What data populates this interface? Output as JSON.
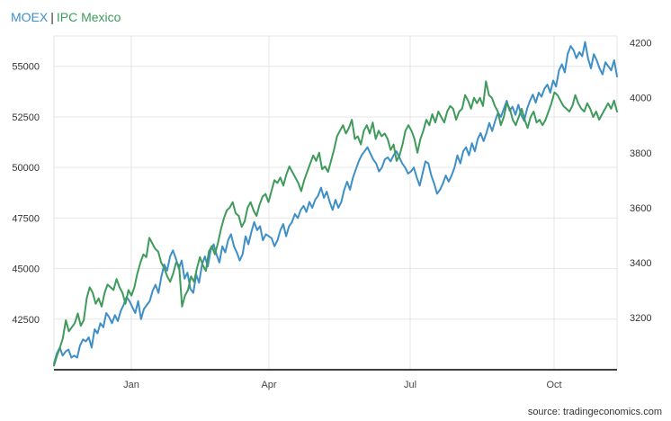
{
  "title": {
    "series1": "MOEX",
    "separator": "|",
    "series2": "IPC Mexico"
  },
  "source": "source: tradingeconomics.com",
  "colors": {
    "series1": "#3f8fc7",
    "series2": "#3f9a5c",
    "grid": "#e6e6e6",
    "axis": "#000000"
  },
  "chart_data": {
    "type": "line",
    "grid": true,
    "title": "",
    "xlabel": "",
    "x_ticks": [
      "Jan",
      "Apr",
      "Jul",
      "Oct"
    ],
    "y_left": {
      "ticks": [
        42500,
        45000,
        47500,
        50000,
        52500,
        55000
      ],
      "range": [
        40000,
        56500
      ]
    },
    "y_right": {
      "ticks": [
        3200,
        3400,
        3600,
        3800,
        4000,
        4200
      ],
      "range": [
        3010,
        4225
      ]
    },
    "series": [
      {
        "name": "MOEX",
        "axis": "left",
        "values": [
          40300,
          40800,
          41100,
          40700,
          40900,
          41000,
          40600,
          40700,
          40600,
          41200,
          41500,
          41400,
          41600,
          41100,
          42000,
          41800,
          42300,
          42100,
          42800,
          42600,
          42300,
          42700,
          42400,
          42900,
          43200,
          43600,
          43400,
          43100,
          42800,
          43400,
          42500,
          43000,
          43200,
          43400,
          43900,
          44200,
          43800,
          44600,
          45200,
          44900,
          45600,
          45900,
          45500,
          45000,
          45400,
          44500,
          44800,
          44000,
          43800,
          44700,
          44300,
          45200,
          45600,
          45100,
          45900,
          46200,
          45700,
          45300,
          46100,
          45800,
          46400,
          46700,
          46100,
          45800,
          45400,
          45700,
          46600,
          46200,
          46800,
          47300,
          46900,
          47100,
          46400,
          46700,
          46600,
          46500,
          46100,
          46400,
          46900,
          47200,
          46600,
          47100,
          47300,
          47700,
          47500,
          47900,
          48100,
          47800,
          48300,
          48000,
          48400,
          48600,
          49000,
          48500,
          48800,
          48300,
          47900,
          48400,
          48000,
          48300,
          48900,
          49300,
          48900,
          49500,
          49900,
          50300,
          50600,
          50800,
          51000,
          50700,
          50400,
          50200,
          49800,
          50000,
          50400,
          50500,
          50300,
          50600,
          50800,
          50500,
          50200,
          50000,
          49700,
          49800,
          50000,
          49500,
          49100,
          49700,
          50300,
          50200,
          49600,
          49200,
          48700,
          48900,
          49200,
          49600,
          49300,
          49600,
          50000,
          50600,
          50200,
          50800,
          51000,
          50600,
          51200,
          50800,
          51400,
          51700,
          51300,
          51700,
          52200,
          51800,
          52300,
          52700,
          52500,
          52900,
          53300,
          52800,
          53000,
          52600,
          53100,
          52600,
          52300,
          52900,
          53300,
          53600,
          53200,
          53700,
          53500,
          53900,
          54100,
          53700,
          54300,
          54000,
          54800,
          55100,
          54700,
          55600,
          56000,
          55800,
          55400,
          55700,
          55500,
          56200,
          55400,
          54900,
          55600,
          55300,
          54900,
          54600,
          55200,
          55000,
          54800,
          55300,
          54500
        ]
      },
      {
        "name": "IPC Mexico",
        "axis": "right",
        "values": [
          3025,
          3060,
          3090,
          3125,
          3190,
          3150,
          3165,
          3180,
          3215,
          3170,
          3190,
          3270,
          3310,
          3290,
          3250,
          3270,
          3240,
          3290,
          3320,
          3310,
          3300,
          3340,
          3310,
          3290,
          3250,
          3300,
          3280,
          3310,
          3360,
          3400,
          3430,
          3420,
          3490,
          3470,
          3450,
          3440,
          3400,
          3380,
          3350,
          3330,
          3360,
          3400,
          3390,
          3240,
          3280,
          3300,
          3350,
          3330,
          3380,
          3420,
          3390,
          3370,
          3440,
          3460,
          3430,
          3470,
          3520,
          3560,
          3590,
          3600,
          3620,
          3580,
          3570,
          3530,
          3550,
          3600,
          3620,
          3590,
          3570,
          3610,
          3640,
          3650,
          3620,
          3660,
          3700,
          3690,
          3710,
          3680,
          3720,
          3750,
          3730,
          3710,
          3690,
          3660,
          3700,
          3730,
          3760,
          3790,
          3770,
          3800,
          3740,
          3750,
          3730,
          3770,
          3810,
          3860,
          3880,
          3900,
          3870,
          3890,
          3920,
          3850,
          3860,
          3830,
          3880,
          3900,
          3870,
          3910,
          3850,
          3880,
          3860,
          3870,
          3850,
          3810,
          3830,
          3770,
          3790,
          3830,
          3880,
          3900,
          3880,
          3850,
          3800,
          3850,
          3880,
          3920,
          3900,
          3940,
          3910,
          3950,
          3930,
          3910,
          3950,
          3970,
          3960,
          3920,
          3950,
          3960,
          4010,
          3990,
          3960,
          4000,
          3980,
          4000,
          3970,
          4060,
          4010,
          4000,
          3970,
          3950,
          3900,
          3930,
          3980,
          3960,
          3920,
          3900,
          3930,
          3960,
          3920,
          3890,
          3930,
          3950,
          3910,
          3920,
          3900,
          3920,
          3950,
          3980,
          4020,
          4010,
          3990,
          3970,
          3960,
          3950,
          3970,
          4010,
          3980,
          3960,
          3950,
          3980,
          3960,
          3930,
          3950,
          3920,
          3940,
          3960,
          3980,
          3960,
          3990,
          3950
        ]
      }
    ]
  }
}
